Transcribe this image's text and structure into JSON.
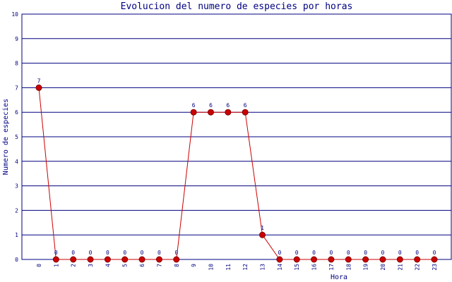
{
  "chart_data": {
    "type": "line",
    "title": "Evolucion del numero de especies por horas",
    "x_label": "Hora",
    "y_label": "Numero de especies",
    "categories": [
      "0",
      "1",
      "2",
      "3",
      "4",
      "5",
      "6",
      "7",
      "8",
      "9",
      "10",
      "11",
      "12",
      "13",
      "14",
      "15",
      "16",
      "17",
      "18",
      "19",
      "20",
      "21",
      "22",
      "23"
    ],
    "series": [
      {
        "name": "Numero de especies",
        "color": "#cc0000",
        "values": [
          7,
          0,
          0,
          0,
          0,
          0,
          0,
          0,
          0,
          6,
          6,
          6,
          6,
          1,
          0,
          0,
          0,
          0,
          0,
          0,
          0,
          0,
          0,
          0
        ]
      }
    ],
    "ylim": [
      0,
      10
    ],
    "yticks": [
      0,
      1,
      2,
      3,
      4,
      5,
      6,
      7,
      8,
      9,
      10
    ],
    "grid": true
  }
}
